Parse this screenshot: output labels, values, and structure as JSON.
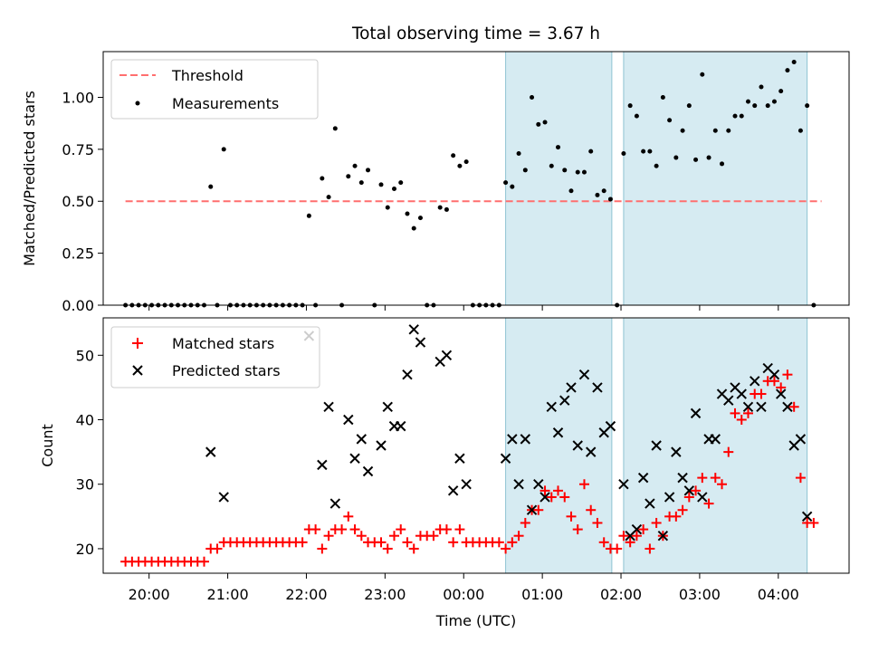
{
  "colors": {
    "band": "#add8e6",
    "threshold": "#ff6f6f",
    "matched": "#ff0000",
    "predicted": "#000000",
    "measurements": "#000000"
  },
  "chart_data": [
    {
      "type": "scatter",
      "title": "Total observing time = 3.67 h",
      "ylabel": "Matched/Predicted stars",
      "ylim": [
        0,
        1.22
      ],
      "yticks": [
        "0.00",
        "0.25",
        "0.50",
        "0.75",
        "1.00"
      ],
      "ytick_values": [
        0,
        0.25,
        0.5,
        0.75,
        1.0
      ],
      "legend_position": "upper left",
      "legend": {
        "threshold": "Threshold",
        "measurements": "Measurements"
      },
      "threshold": {
        "value": 0.5,
        "x_start": "19:42",
        "x_end": "04:33"
      },
      "shaded_intervals": [
        [
          "00:32",
          "01:53"
        ],
        [
          "02:02",
          "04:22"
        ]
      ],
      "measurements": [
        [
          "19:42",
          0
        ],
        [
          "19:47",
          0
        ],
        [
          "19:52",
          0
        ],
        [
          "19:57",
          0
        ],
        [
          "20:02",
          0
        ],
        [
          "20:07",
          0
        ],
        [
          "20:12",
          0
        ],
        [
          "20:17",
          0
        ],
        [
          "20:22",
          0
        ],
        [
          "20:27",
          0
        ],
        [
          "20:32",
          0
        ],
        [
          "20:37",
          0
        ],
        [
          "20:42",
          0
        ],
        [
          "20:47",
          0.57
        ],
        [
          "20:52",
          0
        ],
        [
          "20:57",
          0.75
        ],
        [
          "21:02",
          0
        ],
        [
          "21:07",
          0
        ],
        [
          "21:12",
          0
        ],
        [
          "21:17",
          0
        ],
        [
          "21:22",
          0
        ],
        [
          "21:27",
          0
        ],
        [
          "21:32",
          0
        ],
        [
          "21:37",
          0
        ],
        [
          "21:42",
          0
        ],
        [
          "21:47",
          0
        ],
        [
          "21:52",
          0
        ],
        [
          "21:57",
          0
        ],
        [
          "22:02",
          0.43
        ],
        [
          "22:07",
          0
        ],
        [
          "22:12",
          0.61
        ],
        [
          "22:17",
          0.52
        ],
        [
          "22:22",
          0.85
        ],
        [
          "22:27",
          0
        ],
        [
          "22:32",
          0.62
        ],
        [
          "22:37",
          0.67
        ],
        [
          "22:42",
          0.59
        ],
        [
          "22:47",
          0.65
        ],
        [
          "22:52",
          0
        ],
        [
          "22:57",
          0.58
        ],
        [
          "23:02",
          0.47
        ],
        [
          "23:07",
          0.56
        ],
        [
          "23:12",
          0.59
        ],
        [
          "23:17",
          0.44
        ],
        [
          "23:22",
          0.37
        ],
        [
          "23:27",
          0.42
        ],
        [
          "23:32",
          0
        ],
        [
          "23:37",
          0
        ],
        [
          "23:42",
          0.47
        ],
        [
          "23:47",
          0.46
        ],
        [
          "23:52",
          0.72
        ],
        [
          "23:57",
          0.67
        ],
        [
          "00:02",
          0.69
        ],
        [
          "00:07",
          0
        ],
        [
          "00:12",
          0
        ],
        [
          "00:17",
          0
        ],
        [
          "00:22",
          0
        ],
        [
          "00:27",
          0
        ],
        [
          "00:32",
          0.59
        ],
        [
          "00:37",
          0.57
        ],
        [
          "00:42",
          0.73
        ],
        [
          "00:47",
          0.65
        ],
        [
          "00:52",
          1.0
        ],
        [
          "00:57",
          0.87
        ],
        [
          "01:02",
          0.88
        ],
        [
          "01:07",
          0.67
        ],
        [
          "01:12",
          0.76
        ],
        [
          "01:17",
          0.65
        ],
        [
          "01:22",
          0.55
        ],
        [
          "01:27",
          0.64
        ],
        [
          "01:32",
          0.64
        ],
        [
          "01:37",
          0.74
        ],
        [
          "01:42",
          0.53
        ],
        [
          "01:47",
          0.55
        ],
        [
          "01:52",
          0.51
        ],
        [
          "01:57",
          0
        ],
        [
          "02:02",
          0.73
        ],
        [
          "02:07",
          0.96
        ],
        [
          "02:12",
          0.91
        ],
        [
          "02:17",
          0.74
        ],
        [
          "02:22",
          0.74
        ],
        [
          "02:27",
          0.67
        ],
        [
          "02:32",
          1.0
        ],
        [
          "02:37",
          0.89
        ],
        [
          "02:42",
          0.71
        ],
        [
          "02:47",
          0.84
        ],
        [
          "02:52",
          0.96
        ],
        [
          "02:57",
          0.7
        ],
        [
          "03:02",
          1.11
        ],
        [
          "03:07",
          0.71
        ],
        [
          "03:12",
          0.84
        ],
        [
          "03:17",
          0.68
        ],
        [
          "03:22",
          0.84
        ],
        [
          "03:27",
          0.91
        ],
        [
          "03:32",
          0.91
        ],
        [
          "03:37",
          0.98
        ],
        [
          "03:42",
          0.96
        ],
        [
          "03:47",
          1.05
        ],
        [
          "03:52",
          0.96
        ],
        [
          "03:57",
          0.98
        ],
        [
          "04:02",
          1.03
        ],
        [
          "04:07",
          1.13
        ],
        [
          "04:12",
          1.17
        ],
        [
          "04:17",
          0.84
        ],
        [
          "04:22",
          0.96
        ],
        [
          "04:27",
          0
        ]
      ]
    },
    {
      "type": "scatter",
      "ylabel": "Count",
      "xlabel": "Time (UTC)",
      "ylim": [
        16.2,
        55.8
      ],
      "yticks": [
        "20",
        "30",
        "40",
        "50"
      ],
      "ytick_values": [
        20,
        30,
        40,
        50
      ],
      "xticks": [
        "20:00",
        "21:00",
        "22:00",
        "23:00",
        "00:00",
        "01:00",
        "02:00",
        "03:00",
        "04:00"
      ],
      "xlim": [
        "19:25",
        "04:54"
      ],
      "legend_position": "upper left",
      "legend": {
        "matched": "Matched stars",
        "predicted": "Predicted stars"
      },
      "shaded_intervals": [
        [
          "00:32",
          "01:53"
        ],
        [
          "02:02",
          "04:22"
        ]
      ],
      "matched": [
        [
          "19:42",
          18
        ],
        [
          "19:47",
          18
        ],
        [
          "19:52",
          18
        ],
        [
          "19:57",
          18
        ],
        [
          "20:02",
          18
        ],
        [
          "20:07",
          18
        ],
        [
          "20:12",
          18
        ],
        [
          "20:17",
          18
        ],
        [
          "20:22",
          18
        ],
        [
          "20:27",
          18
        ],
        [
          "20:32",
          18
        ],
        [
          "20:37",
          18
        ],
        [
          "20:42",
          18
        ],
        [
          "20:47",
          20
        ],
        [
          "20:52",
          20
        ],
        [
          "20:57",
          21
        ],
        [
          "21:02",
          21
        ],
        [
          "21:07",
          21
        ],
        [
          "21:12",
          21
        ],
        [
          "21:17",
          21
        ],
        [
          "21:22",
          21
        ],
        [
          "21:27",
          21
        ],
        [
          "21:32",
          21
        ],
        [
          "21:37",
          21
        ],
        [
          "21:42",
          21
        ],
        [
          "21:47",
          21
        ],
        [
          "21:52",
          21
        ],
        [
          "21:57",
          21
        ],
        [
          "22:02",
          23
        ],
        [
          "22:07",
          23
        ],
        [
          "22:12",
          20
        ],
        [
          "22:17",
          22
        ],
        [
          "22:22",
          23
        ],
        [
          "22:27",
          23
        ],
        [
          "22:32",
          25
        ],
        [
          "22:37",
          23
        ],
        [
          "22:42",
          22
        ],
        [
          "22:47",
          21
        ],
        [
          "22:52",
          21
        ],
        [
          "22:57",
          21
        ],
        [
          "23:02",
          20
        ],
        [
          "23:07",
          22
        ],
        [
          "23:12",
          23
        ],
        [
          "23:17",
          21
        ],
        [
          "23:22",
          20
        ],
        [
          "23:27",
          22
        ],
        [
          "23:32",
          22
        ],
        [
          "23:37",
          22
        ],
        [
          "23:42",
          23
        ],
        [
          "23:47",
          23
        ],
        [
          "23:52",
          21
        ],
        [
          "23:57",
          23
        ],
        [
          "00:02",
          21
        ],
        [
          "00:07",
          21
        ],
        [
          "00:12",
          21
        ],
        [
          "00:17",
          21
        ],
        [
          "00:22",
          21
        ],
        [
          "00:27",
          21
        ],
        [
          "00:32",
          20
        ],
        [
          "00:37",
          21
        ],
        [
          "00:42",
          22
        ],
        [
          "00:47",
          24
        ],
        [
          "00:52",
          26
        ],
        [
          "00:57",
          26
        ],
        [
          "01:02",
          29
        ],
        [
          "01:07",
          28
        ],
        [
          "01:12",
          29
        ],
        [
          "01:17",
          28
        ],
        [
          "01:22",
          25
        ],
        [
          "01:27",
          23
        ],
        [
          "01:32",
          30
        ],
        [
          "01:37",
          26
        ],
        [
          "01:42",
          24
        ],
        [
          "01:47",
          21
        ],
        [
          "01:52",
          20
        ],
        [
          "01:57",
          20
        ],
        [
          "02:02",
          22
        ],
        [
          "02:07",
          21
        ],
        [
          "02:12",
          22
        ],
        [
          "02:17",
          23
        ],
        [
          "02:22",
          20
        ],
        [
          "02:27",
          24
        ],
        [
          "02:32",
          22
        ],
        [
          "02:37",
          25
        ],
        [
          "02:42",
          25
        ],
        [
          "02:47",
          26
        ],
        [
          "02:52",
          28
        ],
        [
          "02:57",
          29
        ],
        [
          "03:02",
          31
        ],
        [
          "03:07",
          27
        ],
        [
          "03:12",
          31
        ],
        [
          "03:17",
          30
        ],
        [
          "03:22",
          35
        ],
        [
          "03:27",
          41
        ],
        [
          "03:32",
          40
        ],
        [
          "03:37",
          41
        ],
        [
          "03:42",
          44
        ],
        [
          "03:47",
          44
        ],
        [
          "03:52",
          46
        ],
        [
          "03:57",
          46
        ],
        [
          "04:02",
          45
        ],
        [
          "04:07",
          47
        ],
        [
          "04:12",
          42
        ],
        [
          "04:17",
          31
        ],
        [
          "04:22",
          24
        ],
        [
          "04:27",
          24
        ]
      ],
      "predicted": [
        [
          "20:47",
          35
        ],
        [
          "20:57",
          28
        ],
        [
          "22:02",
          53
        ],
        [
          "22:12",
          33
        ],
        [
          "22:17",
          42
        ],
        [
          "22:22",
          27
        ],
        [
          "22:32",
          40
        ],
        [
          "22:37",
          34
        ],
        [
          "22:42",
          37
        ],
        [
          "22:47",
          32
        ],
        [
          "22:57",
          36
        ],
        [
          "23:02",
          42
        ],
        [
          "23:07",
          39
        ],
        [
          "23:12",
          39
        ],
        [
          "23:17",
          47
        ],
        [
          "23:22",
          54
        ],
        [
          "23:27",
          52
        ],
        [
          "23:42",
          49
        ],
        [
          "23:47",
          50
        ],
        [
          "23:52",
          29
        ],
        [
          "23:57",
          34
        ],
        [
          "00:02",
          30
        ],
        [
          "00:32",
          34
        ],
        [
          "00:37",
          37
        ],
        [
          "00:42",
          30
        ],
        [
          "00:47",
          37
        ],
        [
          "00:52",
          26
        ],
        [
          "00:57",
          30
        ],
        [
          "01:02",
          28
        ],
        [
          "01:07",
          42
        ],
        [
          "01:12",
          38
        ],
        [
          "01:17",
          43
        ],
        [
          "01:22",
          45
        ],
        [
          "01:27",
          36
        ],
        [
          "01:32",
          47
        ],
        [
          "01:37",
          35
        ],
        [
          "01:42",
          45
        ],
        [
          "01:47",
          38
        ],
        [
          "01:52",
          39
        ],
        [
          "02:02",
          30
        ],
        [
          "02:07",
          22
        ],
        [
          "02:12",
          23
        ],
        [
          "02:17",
          31
        ],
        [
          "02:22",
          27
        ],
        [
          "02:27",
          36
        ],
        [
          "02:32",
          22
        ],
        [
          "02:37",
          28
        ],
        [
          "02:42",
          35
        ],
        [
          "02:47",
          31
        ],
        [
          "02:52",
          29
        ],
        [
          "02:57",
          41
        ],
        [
          "03:02",
          28
        ],
        [
          "03:07",
          37
        ],
        [
          "03:12",
          37
        ],
        [
          "03:17",
          44
        ],
        [
          "03:22",
          43
        ],
        [
          "03:27",
          45
        ],
        [
          "03:32",
          44
        ],
        [
          "03:37",
          42
        ],
        [
          "03:42",
          46
        ],
        [
          "03:47",
          42
        ],
        [
          "03:52",
          48
        ],
        [
          "03:57",
          47
        ],
        [
          "04:02",
          44
        ],
        [
          "04:07",
          42
        ],
        [
          "04:12",
          36
        ],
        [
          "04:17",
          37
        ],
        [
          "04:22",
          25
        ]
      ]
    }
  ]
}
